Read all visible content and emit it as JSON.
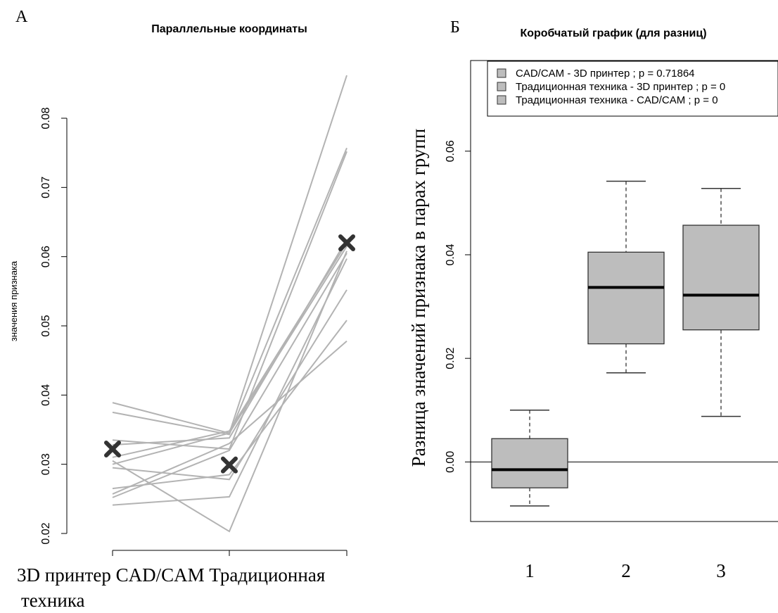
{
  "colors": {
    "line": "#b3b3b3",
    "marker": "#333333",
    "box_fill": "#bdbdbd",
    "box_stroke": "#333333",
    "axis": "#000000"
  },
  "panel_a": {
    "panel_letter": "А",
    "title": "Параллельные координаты",
    "ylabel": "значения признака",
    "bottom_label_line1": "3D принтер CAD/CAM Традиционная",
    "bottom_label_line2": "техника"
  },
  "panel_b": {
    "panel_letter": "Б",
    "title": "Коробчатый график (для разниц)",
    "ylabel": "Разница значений признака в парах групп"
  },
  "chart_data": [
    {
      "type": "line",
      "title": "Параллельные координаты",
      "ylabel": "значения признака",
      "x": [
        "3D принтер",
        "CAD/CAM",
        "Традиционная техника"
      ],
      "ylim": [
        0.02,
        0.08
      ],
      "yticks": [
        "0.02",
        "0.03",
        "0.04",
        "0.05",
        "0.06",
        "0.07",
        "0.08"
      ],
      "series": [
        {
          "values": [
            0.0389,
            0.0345,
            0.0862
          ]
        },
        {
          "values": [
            0.0375,
            0.0343,
            0.0757
          ]
        },
        {
          "values": [
            0.0335,
            0.0322,
            0.0752
          ]
        },
        {
          "values": [
            0.0328,
            0.0338,
            0.0625
          ]
        },
        {
          "values": [
            0.031,
            0.0348,
            0.062
          ]
        },
        {
          "values": [
            0.03,
            0.0345,
            0.0615
          ]
        },
        {
          "values": [
            0.0295,
            0.0278,
            0.0552
          ]
        },
        {
          "values": [
            0.0265,
            0.0285,
            0.0508
          ]
        },
        {
          "values": [
            0.0257,
            0.033,
            0.0478
          ]
        },
        {
          "values": [
            0.0252,
            0.032,
            0.0605
          ]
        },
        {
          "values": [
            0.0241,
            0.0253,
            0.0597
          ]
        },
        {
          "values": [
            0.0305,
            0.0203,
            0.0608
          ]
        }
      ],
      "means": [
        0.0322,
        0.0299,
        0.062
      ]
    },
    {
      "type": "box",
      "title": "Коробчатый график (для разниц)",
      "ylabel": "Разница значений признака в парах групп",
      "categories": [
        "1",
        "2",
        "3"
      ],
      "ylim": [
        -0.0115,
        0.0775
      ],
      "yticks": [
        "0.00",
        "0.02",
        "0.04",
        "0.06"
      ],
      "hline": 0,
      "boxes": [
        {
          "whisker_low": -0.0085,
          "q1": -0.005,
          "median": -0.0015,
          "q3": 0.0045,
          "whisker_high": 0.01
        },
        {
          "whisker_low": 0.0172,
          "q1": 0.0228,
          "median": 0.0337,
          "q3": 0.0405,
          "whisker_high": 0.0542
        },
        {
          "whisker_low": 0.0088,
          "q1": 0.0255,
          "median": 0.0322,
          "q3": 0.0457,
          "whisker_high": 0.0528
        }
      ],
      "legend": {
        "placement": "top-right",
        "entries": [
          "CAD/CAM - 3D принтер ; p =  0.71864",
          "Традиционная техника - 3D принтер ; p =  0",
          "Традиционная техника - CAD/CAM ; p =  0"
        ]
      }
    }
  ]
}
